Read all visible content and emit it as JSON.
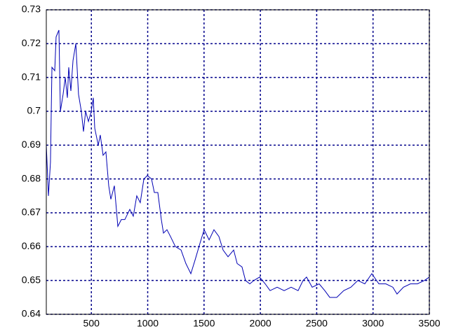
{
  "chart_data": {
    "type": "line",
    "x": [
      100,
      119,
      137,
      150,
      175,
      187,
      212,
      225,
      249,
      268,
      287,
      299,
      318,
      337,
      362,
      386,
      411,
      430,
      449,
      474,
      499,
      517,
      530,
      561,
      579,
      604,
      629,
      654,
      673,
      704,
      735,
      766,
      797,
      841,
      872,
      903,
      934,
      966,
      997,
      1034,
      1059,
      1090,
      1121,
      1140,
      1171,
      1202,
      1246,
      1296,
      1339,
      1383,
      1420,
      1464,
      1501,
      1545,
      1588,
      1632,
      1669,
      1713,
      1763,
      1794,
      1837,
      1868,
      1906,
      1943,
      1993,
      2043,
      2086,
      2149,
      2211,
      2273,
      2335,
      2379,
      2410,
      2460,
      2522,
      2572,
      2616,
      2678,
      2740,
      2803,
      2865,
      2927,
      2989,
      3052,
      3114,
      3176,
      3213,
      3270,
      3332,
      3394,
      3456,
      3500
    ],
    "series": [
      {
        "color": "#0000b4",
        "values": [
          0.69,
          0.675,
          0.685,
          0.713,
          0.712,
          0.722,
          0.724,
          0.7,
          0.705,
          0.71,
          0.704,
          0.713,
          0.706,
          0.715,
          0.72,
          0.705,
          0.7,
          0.694,
          0.7,
          0.697,
          0.7,
          0.704,
          0.695,
          0.69,
          0.693,
          0.687,
          0.688,
          0.678,
          0.674,
          0.678,
          0.666,
          0.668,
          0.668,
          0.671,
          0.669,
          0.675,
          0.673,
          0.68,
          0.681,
          0.68,
          0.676,
          0.676,
          0.668,
          0.664,
          0.665,
          0.663,
          0.66,
          0.659,
          0.655,
          0.652,
          0.656,
          0.661,
          0.665,
          0.662,
          0.665,
          0.663,
          0.659,
          0.657,
          0.659,
          0.655,
          0.654,
          0.65,
          0.649,
          0.65,
          0.651,
          0.649,
          0.647,
          0.648,
          0.647,
          0.648,
          0.647,
          0.65,
          0.651,
          0.648,
          0.649,
          0.647,
          0.645,
          0.645,
          0.647,
          0.648,
          0.65,
          0.649,
          0.652,
          0.649,
          0.649,
          0.648,
          0.646,
          0.648,
          0.649,
          0.649,
          0.65,
          0.651
        ]
      }
    ],
    "xlim": [
      100,
      3500
    ],
    "xticks": [
      500,
      1000,
      1500,
      2000,
      2500,
      3000,
      3500
    ],
    "ylim": [
      0.64,
      0.73
    ],
    "yticks": [
      0.64,
      0.65,
      0.66,
      0.67,
      0.68,
      0.69,
      0.7,
      0.71,
      0.72,
      0.73
    ],
    "grid": true
  }
}
